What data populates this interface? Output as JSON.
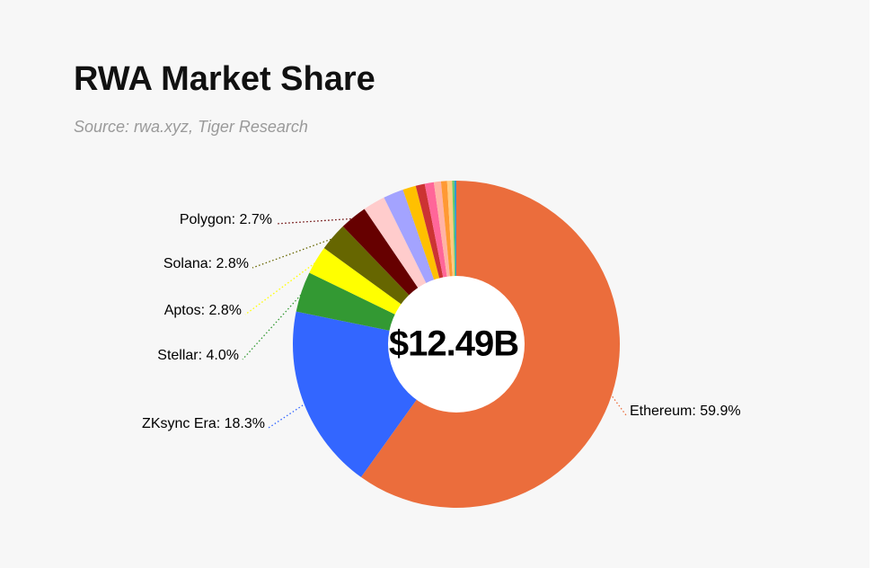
{
  "chart_data": {
    "type": "donut",
    "title": "RWA Market Share",
    "subtitle": "Source: rwa.xyz, Tiger Research",
    "center_label": "$12.49B",
    "values": [
      59.9,
      18.3,
      4.0,
      2.8,
      2.8,
      2.7,
      2.2,
      2.0,
      1.3,
      0.9,
      0.9,
      0.7,
      0.6,
      0.5,
      0.2,
      0.2
    ],
    "value_labels": [
      "Ethereum: 59.9%",
      "ZKsync Era: 18.3%",
      "Stellar: 4.0%",
      "Aptos: 2.8%",
      "Solana: 2.8%",
      "Polygon: 2.7%",
      null,
      null,
      null,
      null,
      null,
      null,
      null,
      null,
      null,
      null
    ],
    "colors": [
      "#eb6d3c",
      "#3366ff",
      "#339933",
      "#ffff00",
      "#666600",
      "#660000",
      "#ffcccc",
      "#a3a3ff",
      "#ffc000",
      "#cc3333",
      "#ff6699",
      "#ffb3a6",
      "#ff9933",
      "#ffcc80",
      "#66cc66",
      "#3399cc"
    ]
  }
}
